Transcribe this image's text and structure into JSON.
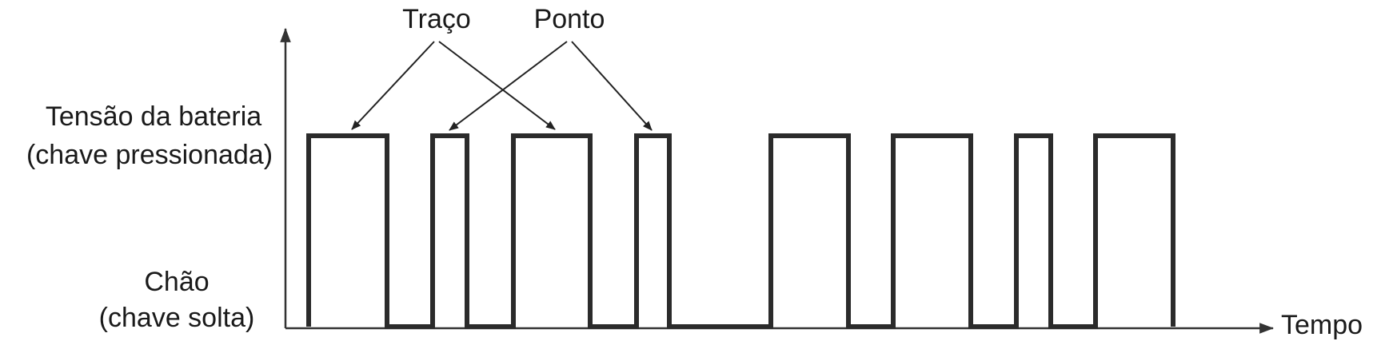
{
  "labels": {
    "high_line1": "Tensão da bateria",
    "high_line2": "(chave pressionada)",
    "low_line1": "Chão",
    "low_line2": "(chave solta)",
    "x_axis": "Tempo",
    "dash": "Traço",
    "dot": "Ponto"
  },
  "signal_levels": [
    "low",
    "high"
  ],
  "waveform_pulses": [
    {
      "symbol": "dash"
    },
    {
      "symbol": "dot"
    },
    {
      "symbol": "dash"
    },
    {
      "symbol": "dot"
    },
    {
      "symbol": "dash"
    },
    {
      "symbol": "dash"
    },
    {
      "symbol": "dot"
    },
    {
      "symbol": "dash"
    }
  ]
}
